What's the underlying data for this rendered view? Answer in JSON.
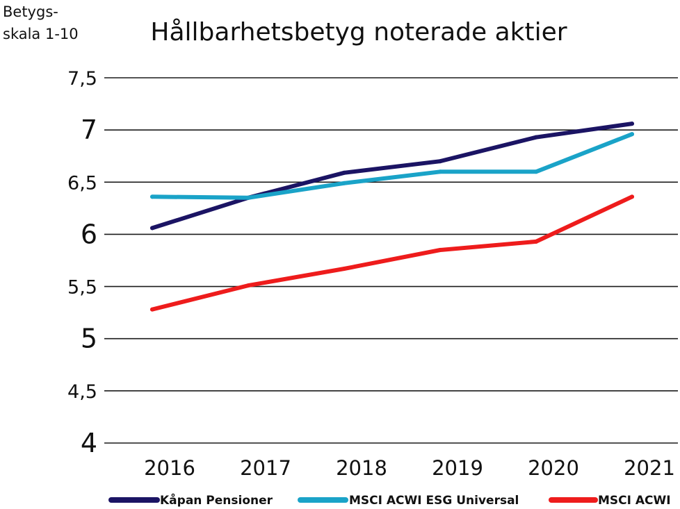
{
  "chart_data": {
    "type": "line",
    "title": "Hållbarhetsbetyg noterade aktier",
    "ylabel": [
      "Betygs-",
      "skala 1-10"
    ],
    "xlabel": "",
    "categories": [
      "2016",
      "2017",
      "2018",
      "2019",
      "2020",
      "2021"
    ],
    "ylim": [
      4,
      7.5
    ],
    "yticks": [
      {
        "value": 4,
        "label": "4",
        "major": true
      },
      {
        "value": 4.5,
        "label": "4,5",
        "major": false
      },
      {
        "value": 5,
        "label": "5",
        "major": true
      },
      {
        "value": 5.5,
        "label": "5,5",
        "major": false
      },
      {
        "value": 6,
        "label": "6",
        "major": true
      },
      {
        "value": 6.5,
        "label": "6,5",
        "major": false
      },
      {
        "value": 7,
        "label": "7",
        "major": true
      },
      {
        "value": 7.5,
        "label": "7,5",
        "major": false
      }
    ],
    "grid": true,
    "legend_position": "bottom",
    "series": [
      {
        "name": "Kåpan Pensioner",
        "color": "#1b1464",
        "values": [
          6.06,
          6.35,
          6.59,
          6.7,
          6.93,
          7.06
        ]
      },
      {
        "name": "MSCI ACWI ESG Universal",
        "color": "#1aa3c8",
        "values": [
          6.36,
          6.35,
          6.49,
          6.6,
          6.6,
          6.96
        ]
      },
      {
        "name": "MSCI ACWI",
        "color": "#ee1c1c",
        "values": [
          5.28,
          5.51,
          5.67,
          5.85,
          5.93,
          6.36
        ]
      }
    ]
  }
}
